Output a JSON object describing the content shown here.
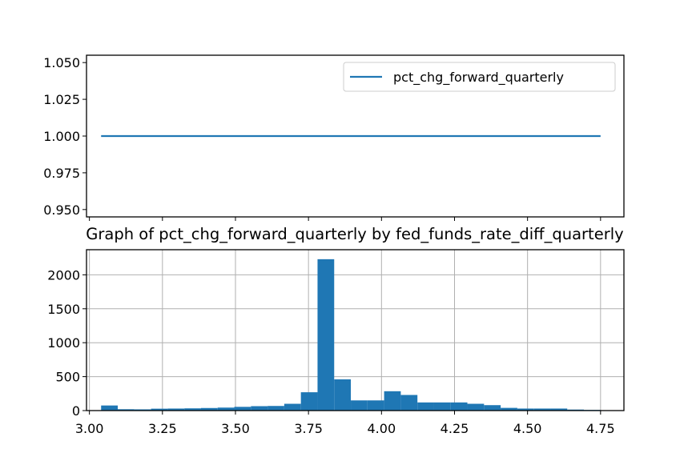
{
  "chart_data": [
    {
      "type": "line",
      "title": "",
      "xlabel": "",
      "ylabel": "",
      "xlim": [
        2.99,
        4.83
      ],
      "ylim": [
        0.945,
        1.055
      ],
      "xticks": [
        3.0,
        3.25,
        3.5,
        3.75,
        4.0,
        4.25,
        4.5,
        4.75
      ],
      "yticks": [
        0.95,
        0.975,
        1.0,
        1.025,
        1.05
      ],
      "ytick_labels": [
        "0.950",
        "0.975",
        "1.000",
        "1.025",
        "1.050"
      ],
      "grid": false,
      "legend_placement": "top-right",
      "series": [
        {
          "name": "pct_chg_forward_quarterly",
          "color": "#1f77b4",
          "x": [
            3.04,
            4.75
          ],
          "y": [
            1.0,
            1.0
          ]
        }
      ]
    },
    {
      "type": "bar",
      "title": "Graph of pct_chg_forward_quarterly by fed_funds_rate_diff_quarterly",
      "xlabel": "",
      "ylabel": "",
      "xlim": [
        2.99,
        4.83
      ],
      "ylim": [
        0,
        2370
      ],
      "xticks": [
        3.0,
        3.25,
        3.5,
        3.75,
        4.0,
        4.25,
        4.5,
        4.75
      ],
      "xtick_labels": [
        "3.00",
        "3.25",
        "3.50",
        "3.75",
        "4.00",
        "4.25",
        "4.50",
        "4.75"
      ],
      "yticks": [
        0,
        500,
        1000,
        1500,
        2000
      ],
      "ytick_labels": [
        "0",
        "500",
        "1000",
        "1500",
        "2000"
      ],
      "grid": true,
      "color": "#1f77b4",
      "bin_edges": [
        3.04,
        3.097,
        3.154,
        3.211,
        3.268,
        3.325,
        3.382,
        3.439,
        3.496,
        3.553,
        3.61,
        3.667,
        3.724,
        3.781,
        3.838,
        3.895,
        3.952,
        4.009,
        4.066,
        4.123,
        4.18,
        4.237,
        4.294,
        4.351,
        4.408,
        4.465,
        4.522,
        4.579,
        4.636,
        4.693,
        4.75
      ],
      "counts": [
        75,
        20,
        18,
        28,
        30,
        33,
        38,
        44,
        55,
        65,
        68,
        100,
        270,
        2230,
        460,
        150,
        150,
        285,
        230,
        120,
        120,
        120,
        100,
        80,
        40,
        30,
        30,
        30,
        15,
        10
      ]
    }
  ],
  "legend": {
    "label": "pct_chg_forward_quarterly"
  }
}
